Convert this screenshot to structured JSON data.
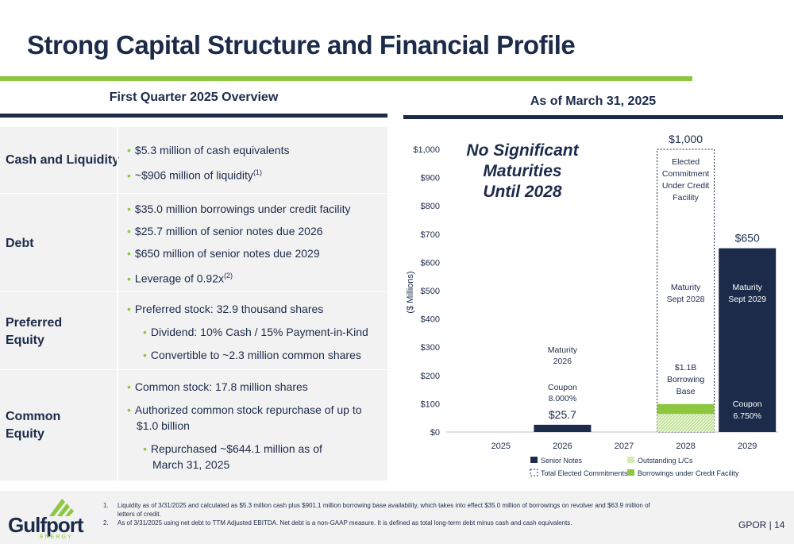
{
  "page": {
    "title": "Strong Capital Structure and Financial Profile",
    "page_number": "GPOR | 14"
  },
  "overview": {
    "header": "First Quarter 2025 Overview",
    "rows": [
      {
        "label": "Cash and Liquidity",
        "bullets": [
          {
            "text": "$5.3 million of cash equivalents",
            "sup": ""
          },
          {
            "text": "~$906 million of liquidity",
            "sup": "(1)"
          }
        ]
      },
      {
        "label": "Debt",
        "bullets": [
          {
            "text": "$35.0 million borrowings under credit facility",
            "sup": ""
          },
          {
            "text": "$25.7 million of senior notes due 2026",
            "sup": ""
          },
          {
            "text": "$650 million of senior notes due 2029",
            "sup": ""
          },
          {
            "text": "Leverage of 0.92x",
            "sup": "(2)"
          }
        ]
      },
      {
        "label_lines": [
          "Preferred",
          "Equity"
        ],
        "bullets": [
          {
            "text": "Preferred stock: 32.9 thousand shares",
            "sup": ""
          },
          {
            "text": "Dividend: 10% Cash / 15% Payment-in-Kind",
            "sup": ""
          },
          {
            "text": "Convertible to ~2.3 million common shares",
            "sup": ""
          }
        ]
      },
      {
        "label_lines": [
          "Common",
          "Equity"
        ],
        "bullets": [
          {
            "text": "Common stock: 17.8 million shares",
            "sup": ""
          },
          {
            "text": "Authorized common stock repurchase of up to",
            "sup": ""
          },
          {
            "text": "$1.0 billion",
            "sup": ""
          },
          {
            "text": "Repurchased ~$644.1 million as of",
            "sup": ""
          },
          {
            "text": "March 31, 2025",
            "sup": ""
          }
        ]
      }
    ]
  },
  "chart_header": "As of March 31, 2025",
  "chart_data": {
    "type": "bar",
    "ylabel": "($ Millions)",
    "ylim": [
      0,
      1000
    ],
    "y_ticks": [
      "$0",
      "$100",
      "$200",
      "$300",
      "$400",
      "$500",
      "$600",
      "$700",
      "$800",
      "$900",
      "$1,000"
    ],
    "categories": [
      "2025",
      "2026",
      "2027",
      "2028",
      "2029"
    ],
    "series": [
      {
        "name": "Senior Notes",
        "color": "#1c2b4a",
        "values": [
          0,
          25.7,
          0,
          0,
          650
        ]
      },
      {
        "name": "Outstanding L/Cs",
        "color": "#c5e39a",
        "values": [
          0,
          0,
          0,
          63.9,
          0
        ]
      },
      {
        "name": "Borrowings under Credit Facility",
        "color": "#8dc63f",
        "values": [
          0,
          0,
          0,
          35.0,
          0
        ]
      },
      {
        "name": "Total Elected Commitments",
        "color": "#1c2b4a",
        "values": [
          0,
          0,
          0,
          1000,
          0
        ]
      }
    ],
    "bar_labels": {
      "2026": "$25.7",
      "2028": "$1,000",
      "2029": "$650"
    },
    "annotations": {
      "no_maturities": [
        "No Significant",
        "Maturities",
        "Until 2028"
      ],
      "maturity_2026": [
        "Maturity",
        "2026"
      ],
      "coupon_2026": [
        "Coupon",
        "8.000%"
      ],
      "elected_commitment": [
        "Elected",
        "Commitment",
        "Under Credit",
        "Facility"
      ],
      "maturity_2028": [
        "Maturity",
        "Sept 2028"
      ],
      "borrowing_base": [
        "$1.1B",
        "Borrowing",
        "Base"
      ],
      "maturity_2029": [
        "Maturity",
        "Sept 2029"
      ],
      "coupon_2029": [
        "Coupon",
        "6.750%"
      ]
    },
    "legend": [
      {
        "label": "Senior Notes",
        "style": "solid-navy"
      },
      {
        "label": "Outstanding L/Cs",
        "style": "hatched-green"
      },
      {
        "label": "Total Elected Commitments",
        "style": "dashed-outline"
      },
      {
        "label": "Borrowings under Credit Facility",
        "style": "solid-green"
      }
    ]
  },
  "footer": {
    "logo_name": "Gulfport",
    "logo_sub": "ENERGY",
    "notes": [
      {
        "num": "1.",
        "text": "Liquidity as of 3/31/2025 and calculated as $5.3 million cash plus $901.1 million borrowing base availability, which takes into effect $35.0 million of borrowings on revolver and $63.9 million of letters of credit."
      },
      {
        "num": "2.",
        "text": "As of 3/31/2025 using net debt to TTM Adjusted EBITDA. Net debt is a non-GAAP measure. It is defined as total long-term debt minus cash and cash equivalents."
      }
    ]
  },
  "colors": {
    "navy": "#1c2b4a",
    "green": "#8dc63f",
    "light_green": "#c5e39a",
    "panel_gray": "#f2f2f2"
  }
}
